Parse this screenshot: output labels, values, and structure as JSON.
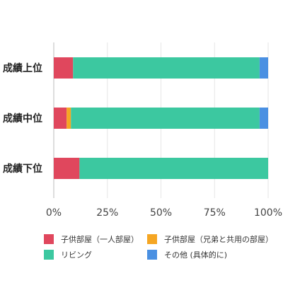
{
  "chart_data": {
    "type": "bar",
    "orientation": "horizontal",
    "stacked": true,
    "percent": true,
    "categories": [
      "成績上位",
      "成績中位",
      "成績下位"
    ],
    "series": [
      {
        "name": "子供部屋（一人部屋）",
        "color": "#e0475d",
        "values": [
          9,
          6,
          12
        ]
      },
      {
        "name": "子供部屋（兄弟と共用の部屋）",
        "color": "#f5a623",
        "values": [
          0,
          2,
          0
        ]
      },
      {
        "name": "リビング",
        "color": "#3cc8a0",
        "values": [
          87,
          88,
          88
        ]
      },
      {
        "name": "その他 (具体的に)",
        "color": "#4a90e2",
        "values": [
          4,
          4,
          0
        ]
      }
    ],
    "xticks": [
      "0%",
      "25%",
      "50%",
      "75%",
      "100%"
    ],
    "xlim": [
      0,
      100
    ],
    "grid": true,
    "legend_position": "bottom"
  }
}
